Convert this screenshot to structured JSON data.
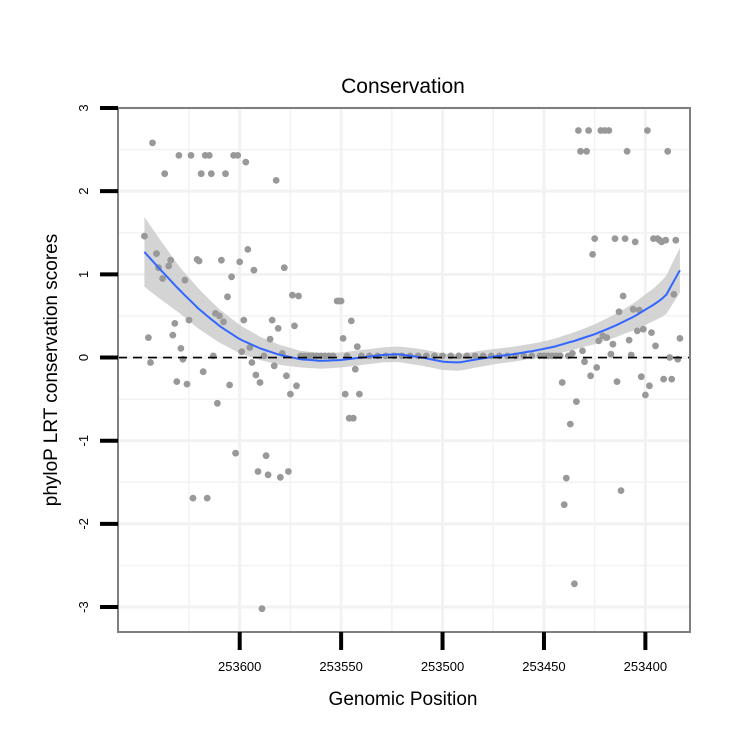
{
  "chart_data": {
    "type": "scatter",
    "title": "Conservation",
    "xlabel": "Genomic Position",
    "ylabel": "phyloP LRT conservation scores",
    "x_reversed": true,
    "xlim": [
      253660,
      253378
    ],
    "ylim": [
      -3.3,
      3.0
    ],
    "x_ticks": [
      253600,
      253550,
      253500,
      253450,
      253400
    ],
    "x_tick_labels": [
      "253600",
      "253550",
      "253500",
      "253450",
      "253400"
    ],
    "y_ticks": [
      -3,
      -2,
      -1,
      0,
      1,
      2,
      3
    ],
    "y_tick_labels": [
      "-3",
      "-2",
      "-1",
      "0",
      "1",
      "2",
      "3"
    ],
    "reference_line": {
      "y": 0,
      "style": "dashed"
    },
    "colors": {
      "points": "#999999",
      "smooth_line": "#3366ff",
      "ribbon": "#cccccc",
      "panel_border": "#7f7f7f",
      "grid": "#f2f2f2"
    },
    "points": [
      [
        253647,
        1.46
      ],
      [
        253645,
        0.24
      ],
      [
        253644,
        -0.06
      ],
      [
        253643,
        2.58
      ],
      [
        253641,
        1.25
      ],
      [
        253640,
        1.08
      ],
      [
        253638,
        0.95
      ],
      [
        253637,
        2.21
      ],
      [
        253635,
        1.1
      ],
      [
        253634,
        1.17
      ],
      [
        253633,
        0.27
      ],
      [
        253632,
        0.41
      ],
      [
        253631,
        -0.29
      ],
      [
        253630,
        2.43
      ],
      [
        253629,
        0.11
      ],
      [
        253628,
        -0.02
      ],
      [
        253627,
        0.93
      ],
      [
        253626,
        -0.32
      ],
      [
        253625,
        0.45
      ],
      [
        253624,
        2.43
      ],
      [
        253623,
        -1.69
      ],
      [
        253621,
        1.18
      ],
      [
        253620,
        1.16
      ],
      [
        253619,
        2.21
      ],
      [
        253618,
        -0.17
      ],
      [
        253617,
        2.43
      ],
      [
        253616,
        -1.69
      ],
      [
        253615,
        2.43
      ],
      [
        253614,
        2.21
      ],
      [
        253613,
        0.02
      ],
      [
        253612,
        0.53
      ],
      [
        253611,
        -0.55
      ],
      [
        253610,
        0.5
      ],
      [
        253609,
        1.17
      ],
      [
        253608,
        0.43
      ],
      [
        253607,
        2.21
      ],
      [
        253606,
        0.73
      ],
      [
        253605,
        -0.33
      ],
      [
        253604,
        0.97
      ],
      [
        253603,
        2.43
      ],
      [
        253602,
        -1.15
      ],
      [
        253601,
        2.43
      ],
      [
        253600,
        1.15
      ],
      [
        253599,
        0.07
      ],
      [
        253598,
        0.45
      ],
      [
        253597,
        2.35
      ],
      [
        253596,
        1.3
      ],
      [
        253595,
        0.12
      ],
      [
        253594,
        -0.06
      ],
      [
        253593,
        1.05
      ],
      [
        253592,
        -0.21
      ],
      [
        253591,
        -1.37
      ],
      [
        253590,
        -0.3
      ],
      [
        253589,
        -3.02
      ],
      [
        253588,
        0.02
      ],
      [
        253587,
        -1.18
      ],
      [
        253586,
        -1.41
      ],
      [
        253585,
        0.22
      ],
      [
        253584,
        0.45
      ],
      [
        253583,
        -0.1
      ],
      [
        253582,
        2.13
      ],
      [
        253581,
        0.35
      ],
      [
        253580,
        -1.44
      ],
      [
        253579,
        0.05
      ],
      [
        253578,
        1.08
      ],
      [
        253577,
        -0.22
      ],
      [
        253576,
        -1.37
      ],
      [
        253575,
        -0.44
      ],
      [
        253574,
        0.75
      ],
      [
        253573,
        0.38
      ],
      [
        253572,
        -0.34
      ],
      [
        253571,
        0.74
      ],
      [
        253570,
        0.02
      ],
      [
        253568,
        0.02
      ],
      [
        253566,
        0.02
      ],
      [
        253564,
        0.02
      ],
      [
        253562,
        0.02
      ],
      [
        253560,
        0.02
      ],
      [
        253558,
        0.02
      ],
      [
        253556,
        0.02
      ],
      [
        253554,
        0.02
      ],
      [
        253552,
        0.68
      ],
      [
        253551,
        0.68
      ],
      [
        253550,
        0.68
      ],
      [
        253549,
        0.23
      ],
      [
        253548,
        -0.44
      ],
      [
        253547,
        0.02
      ],
      [
        253546,
        -0.73
      ],
      [
        253545,
        0.44
      ],
      [
        253544,
        -0.73
      ],
      [
        253543,
        -0.14
      ],
      [
        253542,
        0.13
      ],
      [
        253541,
        -0.44
      ],
      [
        253540,
        0.02
      ],
      [
        253536,
        0.02
      ],
      [
        253532,
        0.02
      ],
      [
        253528,
        0.02
      ],
      [
        253524,
        0.02
      ],
      [
        253520,
        0.02
      ],
      [
        253516,
        0.02
      ],
      [
        253512,
        0.02
      ],
      [
        253508,
        0.02
      ],
      [
        253504,
        0.02
      ],
      [
        253500,
        0.02
      ],
      [
        253496,
        0.02
      ],
      [
        253492,
        0.02
      ],
      [
        253488,
        0.02
      ],
      [
        253484,
        0.02
      ],
      [
        253480,
        0.02
      ],
      [
        253476,
        0.02
      ],
      [
        253472,
        0.02
      ],
      [
        253468,
        0.02
      ],
      [
        253464,
        0.02
      ],
      [
        253460,
        0.02
      ],
      [
        253456,
        0.02
      ],
      [
        253452,
        0.02
      ],
      [
        253450,
        0.02
      ],
      [
        253448,
        0.02
      ],
      [
        253446,
        0.02
      ],
      [
        253444,
        0.02
      ],
      [
        253442,
        0.02
      ],
      [
        253441,
        -0.3
      ],
      [
        253440,
        -1.77
      ],
      [
        253439,
        -1.45
      ],
      [
        253438,
        0.02
      ],
      [
        253437,
        -0.8
      ],
      [
        253436,
        0.05
      ],
      [
        253435,
        -2.72
      ],
      [
        253434,
        -0.53
      ],
      [
        253433,
        2.73
      ],
      [
        253432,
        2.48
      ],
      [
        253431,
        0.08
      ],
      [
        253430,
        -0.05
      ],
      [
        253429,
        2.48
      ],
      [
        253428,
        2.73
      ],
      [
        253427,
        -0.22
      ],
      [
        253426,
        1.24
      ],
      [
        253425,
        1.43
      ],
      [
        253424,
        -0.12
      ],
      [
        253423,
        0.2
      ],
      [
        253422,
        2.73
      ],
      [
        253421,
        0.26
      ],
      [
        253420,
        2.73
      ],
      [
        253419,
        0.24
      ],
      [
        253418,
        2.73
      ],
      [
        253417,
        0.04
      ],
      [
        253416,
        0.16
      ],
      [
        253415,
        1.43
      ],
      [
        253414,
        -0.29
      ],
      [
        253413,
        0.55
      ],
      [
        253412,
        -1.6
      ],
      [
        253411,
        0.74
      ],
      [
        253410,
        1.43
      ],
      [
        253409,
        2.48
      ],
      [
        253408,
        0.21
      ],
      [
        253407,
        0.03
      ],
      [
        253406,
        0.58
      ],
      [
        253405,
        1.39
      ],
      [
        253404,
        0.32
      ],
      [
        253403,
        0.57
      ],
      [
        253402,
        -0.23
      ],
      [
        253401,
        0.34
      ],
      [
        253400,
        -0.45
      ],
      [
        253399,
        2.73
      ],
      [
        253398,
        -0.34
      ],
      [
        253397,
        0.3
      ],
      [
        253396,
        1.43
      ],
      [
        253395,
        0.14
      ],
      [
        253394,
        1.43
      ],
      [
        253393,
        1.41
      ],
      [
        253392,
        1.39
      ],
      [
        253391,
        -0.26
      ],
      [
        253390,
        1.41
      ],
      [
        253389,
        2.48
      ],
      [
        253388,
        0.0
      ],
      [
        253387,
        -0.26
      ],
      [
        253386,
        0.76
      ],
      [
        253385,
        1.41
      ],
      [
        253384,
        -0.02
      ],
      [
        253383,
        0.23
      ]
    ],
    "smooth_line": [
      [
        253647,
        1.27
      ],
      [
        253640,
        1.08
      ],
      [
        253630,
        0.82
      ],
      [
        253620,
        0.58
      ],
      [
        253610,
        0.38
      ],
      [
        253600,
        0.22
      ],
      [
        253590,
        0.11
      ],
      [
        253580,
        0.03
      ],
      [
        253570,
        -0.02
      ],
      [
        253560,
        -0.04
      ],
      [
        253550,
        -0.03
      ],
      [
        253540,
        0.0
      ],
      [
        253530,
        0.03
      ],
      [
        253522,
        0.04
      ],
      [
        253510,
        0.0
      ],
      [
        253500,
        -0.05
      ],
      [
        253492,
        -0.06
      ],
      [
        253485,
        -0.03
      ],
      [
        253475,
        0.01
      ],
      [
        253465,
        0.04
      ],
      [
        253455,
        0.08
      ],
      [
        253445,
        0.13
      ],
      [
        253435,
        0.2
      ],
      [
        253425,
        0.28
      ],
      [
        253415,
        0.38
      ],
      [
        253405,
        0.5
      ],
      [
        253395,
        0.65
      ],
      [
        253390,
        0.74
      ],
      [
        253383,
        1.05
      ]
    ],
    "ribbon_halfwidth": [
      [
        253647,
        0.42
      ],
      [
        253630,
        0.28
      ],
      [
        253610,
        0.2
      ],
      [
        253590,
        0.14
      ],
      [
        253570,
        0.1
      ],
      [
        253550,
        0.09
      ],
      [
        253530,
        0.09
      ],
      [
        253510,
        0.1
      ],
      [
        253490,
        0.1
      ],
      [
        253470,
        0.09
      ],
      [
        253450,
        0.09
      ],
      [
        253430,
        0.11
      ],
      [
        253410,
        0.15
      ],
      [
        253395,
        0.2
      ],
      [
        253383,
        0.27
      ]
    ]
  }
}
